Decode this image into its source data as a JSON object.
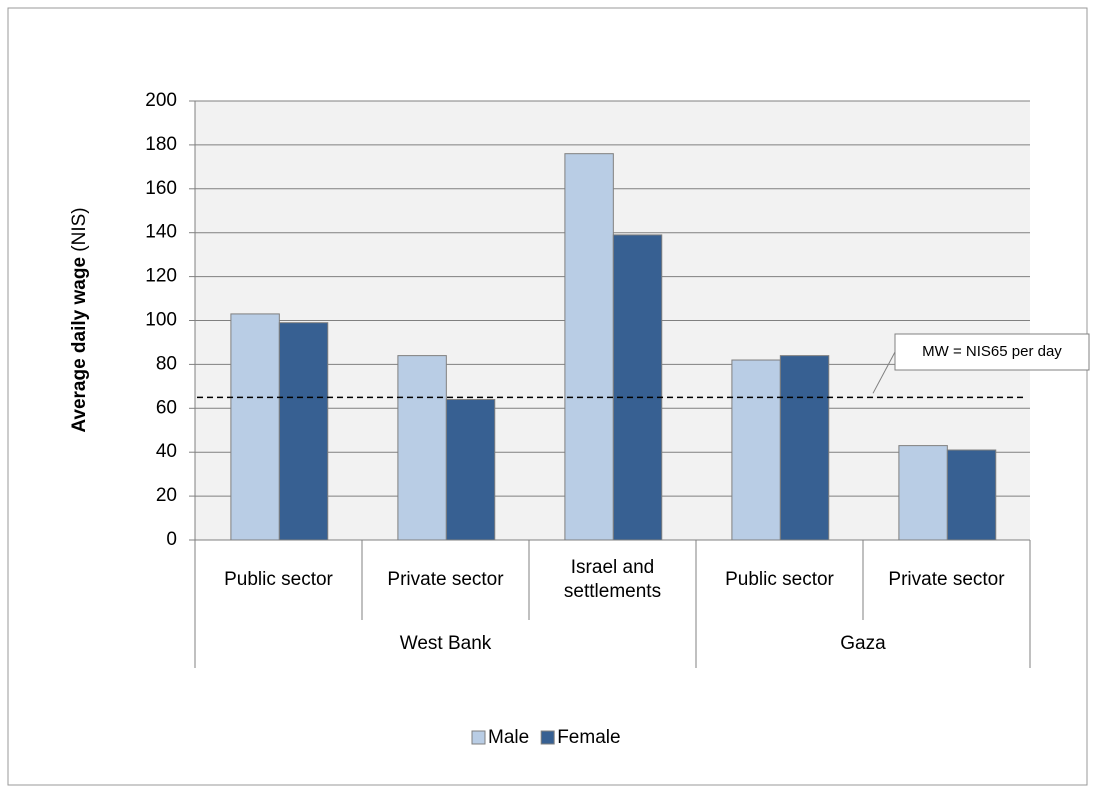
{
  "chart_data": {
    "type": "bar",
    "y_label": "Average daily wage",
    "y_label_unit": "(NIS)",
    "groups": [
      {
        "name": "West Bank",
        "categories": [
          "Public sector",
          "Private sector",
          "Israel and settlements"
        ]
      },
      {
        "name": "Gaza",
        "categories": [
          "Public sector",
          "Private sector"
        ]
      }
    ],
    "series": [
      {
        "name": "Male",
        "color": "#b9cde5",
        "values": [
          103,
          84,
          176,
          82,
          43
        ]
      },
      {
        "name": "Female",
        "color": "#376092",
        "values": [
          99,
          64,
          139,
          84,
          41
        ]
      }
    ],
    "reference_lines": [
      {
        "value": 65,
        "label": "MW = NIS65 per day"
      }
    ],
    "ylim": [
      0,
      200
    ],
    "yticks": [
      0,
      20,
      40,
      60,
      80,
      100,
      120,
      140,
      160,
      180,
      200
    ],
    "grid": true,
    "legend": "bottom"
  }
}
